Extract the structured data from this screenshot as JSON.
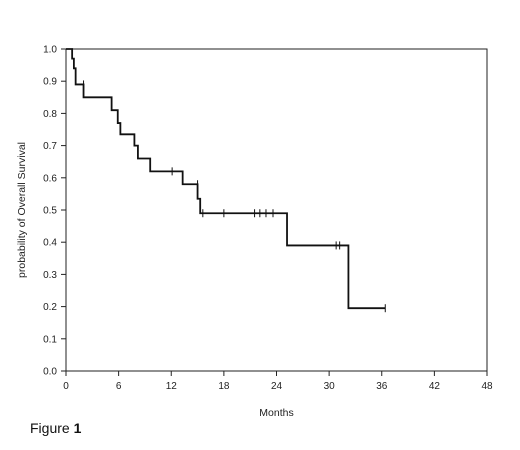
{
  "figure": {
    "caption_prefix": "Figure",
    "caption_number": "1"
  },
  "chart_data": {
    "type": "line",
    "subtype": "kaplan-meier-step",
    "title": "",
    "xlabel": "Months",
    "ylabel": "probability of Overall Survival",
    "xlim": [
      0,
      48
    ],
    "ylim": [
      0,
      1
    ],
    "xticks": [
      0,
      6,
      12,
      18,
      24,
      30,
      36,
      42,
      48
    ],
    "yticks": [
      0.0,
      0.1,
      0.2,
      0.3,
      0.4,
      0.5,
      0.6,
      0.7,
      0.8,
      0.9,
      1.0
    ],
    "grid": false,
    "legend": "none",
    "series": [
      {
        "steps": [
          {
            "x": 0,
            "y": 1.0
          },
          {
            "x": 0.5,
            "y": 1.0
          },
          {
            "x": 0.7,
            "y": 0.97
          },
          {
            "x": 0.9,
            "y": 0.94
          },
          {
            "x": 1.1,
            "y": 0.89
          },
          {
            "x": 2.0,
            "y": 0.85
          },
          {
            "x": 5.2,
            "y": 0.81
          },
          {
            "x": 5.9,
            "y": 0.77
          },
          {
            "x": 6.2,
            "y": 0.735
          },
          {
            "x": 7.8,
            "y": 0.7
          },
          {
            "x": 8.2,
            "y": 0.66
          },
          {
            "x": 9.6,
            "y": 0.62
          },
          {
            "x": 13.3,
            "y": 0.58
          },
          {
            "x": 15.0,
            "y": 0.535
          },
          {
            "x": 15.3,
            "y": 0.49
          },
          {
            "x": 25.2,
            "y": 0.39
          },
          {
            "x": 32.2,
            "y": 0.195
          },
          {
            "x": 36.4,
            "y": 0.195
          }
        ],
        "censored": [
          {
            "x": 2.0,
            "y": 0.89
          },
          {
            "x": 12.1,
            "y": 0.62
          },
          {
            "x": 15.0,
            "y": 0.58
          },
          {
            "x": 15.6,
            "y": 0.49
          },
          {
            "x": 18.0,
            "y": 0.49
          },
          {
            "x": 21.5,
            "y": 0.49
          },
          {
            "x": 22.1,
            "y": 0.49
          },
          {
            "x": 22.8,
            "y": 0.49
          },
          {
            "x": 23.6,
            "y": 0.49
          },
          {
            "x": 30.8,
            "y": 0.39
          },
          {
            "x": 31.2,
            "y": 0.39
          },
          {
            "x": 36.4,
            "y": 0.195
          }
        ]
      }
    ],
    "colors": {
      "line": "#111111",
      "axis": "#222222"
    }
  }
}
